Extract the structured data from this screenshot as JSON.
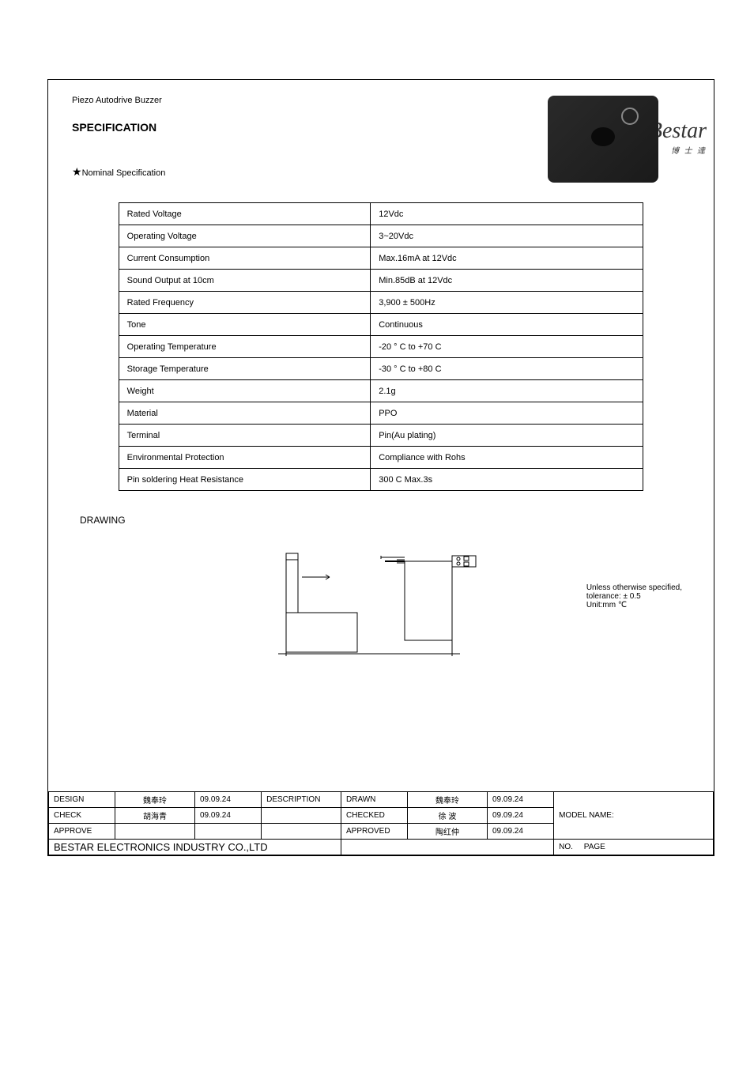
{
  "logo": {
    "text": "Bestar",
    "subtitle": "博 士 達"
  },
  "header": {
    "category": "Piezo Autodrive Buzzer",
    "spec_label": "SPECIFICATION",
    "star_note": "★Nominal Specification"
  },
  "spec_table": {
    "rows": [
      {
        "param": "Rated Voltage",
        "value": "12Vdc"
      },
      {
        "param": "Operating Voltage",
        "value": "3~20Vdc"
      },
      {
        "param": "Current Consumption",
        "value": "Max.16mA at 12Vdc"
      },
      {
        "param": "Sound Output at 10cm",
        "value": "Min.85dB at 12Vdc"
      },
      {
        "param": "Rated Frequency",
        "value": "3,900  ±  500Hz"
      },
      {
        "param": "Tone",
        "value": "Continuous"
      },
      {
        "param": "Operating Temperature",
        "value": "-20  °  C to +70  C"
      },
      {
        "param": "Storage Temperature",
        "value": "-30  °  C to +80  C"
      },
      {
        "param": "Weight",
        "value": "2.1g"
      },
      {
        "param": "Material",
        "value": "PPO"
      },
      {
        "param": "Terminal",
        "value": "Pin(Au plating)"
      },
      {
        "param": "Environmental Protection",
        "value": "Compliance with Rohs"
      },
      {
        "param": "Pin soldering Heat Resistance",
        "value": "300  C Max.3s"
      }
    ]
  },
  "drawing": {
    "label": "DRAWING"
  },
  "tolerance": {
    "label": "Unless otherwise specified,",
    "value": "tolerance:  ±  0.5",
    "unit": "Unit:mm   ℃"
  },
  "footer": {
    "design_label": "DESIGN",
    "design_name": "魏奉玲",
    "design_date": "09.09.24",
    "check_label": "CHECK",
    "check_name": "胡海青",
    "check_date": "09.09.24",
    "approve_label": "APPROVE",
    "description_label": "DESCRIPTION",
    "drawn_label": "DRAWN",
    "drawn_name": "魏奉玲",
    "drawn_date": "09.09.24",
    "checked_label": "CHECKED",
    "checked_name": "徐 波",
    "checked_date": "09.09.24",
    "approved_label": "APPROVED",
    "approved_name": "陶红仲",
    "approved_date": "09.09.24",
    "model_label": "MODEL NAME:",
    "company": "BESTAR ELECTRONICS INDUSTRY CO.,LTD",
    "no_label": "NO.",
    "page_label": "PAGE"
  }
}
